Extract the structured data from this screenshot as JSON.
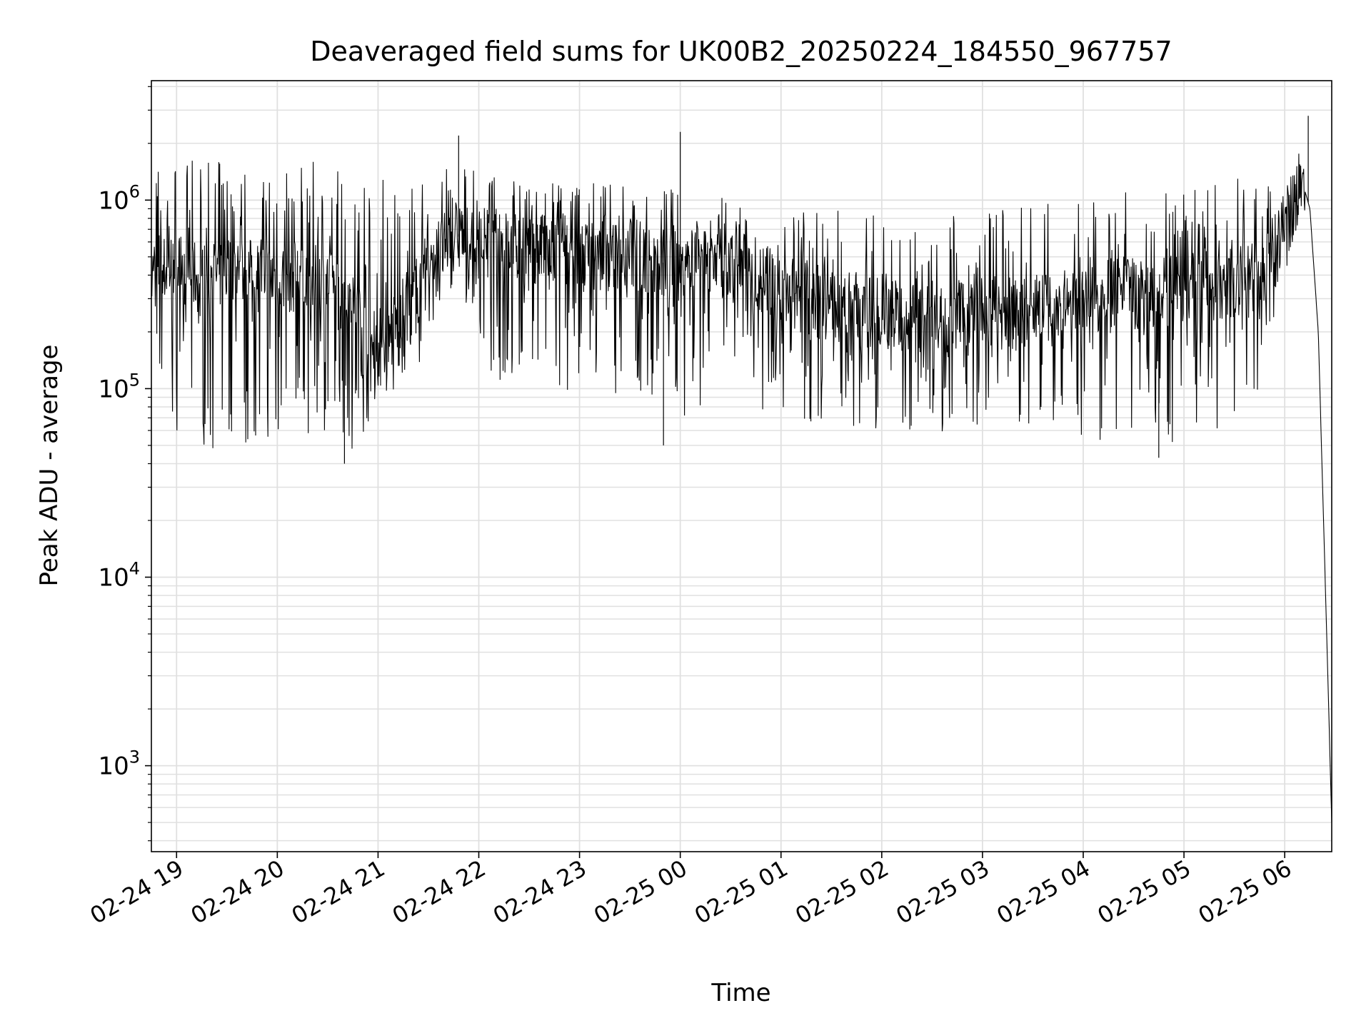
{
  "chart_data": {
    "type": "line",
    "title": "Deaveraged field sums for UK00B2_20250224_184550_967757",
    "xlabel": "Time",
    "ylabel": "Peak ADU - average",
    "y_scale": "log",
    "ylim": [
      350,
      4300000
    ],
    "xlim": [
      "2025-02-24 18:45",
      "2025-02-25 06:28"
    ],
    "grid": true,
    "grid_minor": true,
    "line_color": "#000000",
    "grid_color": "#e0e0e0",
    "x_ticks": [
      {
        "value": "2025-02-24 19:00",
        "label": "02-24 19"
      },
      {
        "value": "2025-02-24 20:00",
        "label": "02-24 20"
      },
      {
        "value": "2025-02-24 21:00",
        "label": "02-24 21"
      },
      {
        "value": "2025-02-24 22:00",
        "label": "02-24 22"
      },
      {
        "value": "2025-02-24 23:00",
        "label": "02-24 23"
      },
      {
        "value": "2025-02-25 00:00",
        "label": "02-25 00"
      },
      {
        "value": "2025-02-25 01:00",
        "label": "02-25 01"
      },
      {
        "value": "2025-02-25 02:00",
        "label": "02-25 02"
      },
      {
        "value": "2025-02-25 03:00",
        "label": "02-25 03"
      },
      {
        "value": "2025-02-25 04:00",
        "label": "02-25 04"
      },
      {
        "value": "2025-02-25 05:00",
        "label": "02-25 05"
      },
      {
        "value": "2025-02-25 06:00",
        "label": "02-25 06"
      }
    ],
    "y_ticks": [
      {
        "value": 1000,
        "label_base": "10",
        "label_exp": "3"
      },
      {
        "value": 10000,
        "label_base": "10",
        "label_exp": "4"
      },
      {
        "value": 100000,
        "label_base": "10",
        "label_exp": "5"
      },
      {
        "value": 1000000,
        "label_base": "10",
        "label_exp": "6"
      }
    ],
    "series": [
      {
        "x": [
          "2025-02-24 18:45",
          "2025-02-24 19:00",
          "2025-02-24 19:15",
          "2025-02-24 19:30",
          "2025-02-24 19:45",
          "2025-02-24 20:00",
          "2025-02-24 20:15",
          "2025-02-24 20:30",
          "2025-02-24 20:45",
          "2025-02-24 21:00",
          "2025-02-24 21:15",
          "2025-02-24 21:30",
          "2025-02-24 21:45",
          "2025-02-24 22:00",
          "2025-02-24 22:15",
          "2025-02-24 22:30",
          "2025-02-24 22:45",
          "2025-02-24 23:00",
          "2025-02-24 23:15",
          "2025-02-24 23:30",
          "2025-02-24 23:45",
          "2025-02-25 00:00",
          "2025-02-25 00:15",
          "2025-02-25 00:30",
          "2025-02-25 00:45",
          "2025-02-25 01:00",
          "2025-02-25 01:15",
          "2025-02-25 01:30",
          "2025-02-25 01:45",
          "2025-02-25 02:00",
          "2025-02-25 02:15",
          "2025-02-25 02:30",
          "2025-02-25 02:45",
          "2025-02-25 03:00",
          "2025-02-25 03:15",
          "2025-02-25 03:30",
          "2025-02-25 03:45",
          "2025-02-25 04:00",
          "2025-02-25 04:15",
          "2025-02-25 04:30",
          "2025-02-25 04:45",
          "2025-02-25 05:00",
          "2025-02-25 05:15",
          "2025-02-25 05:30",
          "2025-02-25 05:45",
          "2025-02-25 06:00",
          "2025-02-25 06:10",
          "2025-02-25 06:15",
          "2025-02-25 06:20",
          "2025-02-25 06:25",
          "2025-02-25 06:28"
        ],
        "median": [
          400000,
          450000,
          380000,
          420000,
          400000,
          380000,
          400000,
          350000,
          300000,
          150000,
          250000,
          420000,
          650000,
          600000,
          580000,
          550000,
          530000,
          520000,
          500000,
          520000,
          450000,
          500000,
          520000,
          420000,
          380000,
          350000,
          300000,
          280000,
          260000,
          250000,
          240000,
          230000,
          230000,
          240000,
          250000,
          260000,
          280000,
          300000,
          320000,
          320000,
          330000,
          340000,
          350000,
          360000,
          380000,
          700000,
          1300000,
          900000,
          200000,
          5000,
          500
        ],
        "low": [
          100000,
          60000,
          50000,
          45000,
          50000,
          55000,
          55000,
          50000,
          45000,
          80000,
          100000,
          120000,
          350000,
          150000,
          100000,
          100000,
          90000,
          95000,
          90000,
          90000,
          80000,
          70000,
          80000,
          75000,
          70000,
          70000,
          65000,
          65000,
          60000,
          60000,
          55000,
          58000,
          60000,
          60000,
          60000,
          60000,
          55000,
          55000,
          50000,
          50000,
          52000,
          50000,
          55000,
          58000,
          90000,
          400000,
          900000,
          700000,
          200000,
          5000,
          500
        ],
        "high": [
          1600000,
          1600000,
          1650000,
          1600000,
          1650000,
          1600000,
          1600000,
          1600000,
          1650000,
          1400000,
          1400000,
          1200000,
          1600000,
          1400000,
          1300000,
          1300000,
          1300000,
          1250000,
          1300000,
          1300000,
          1200000,
          1150000,
          1100000,
          1000000,
          950000,
          900000,
          900000,
          900000,
          850000,
          850000,
          820000,
          820000,
          850000,
          850000,
          900000,
          950000,
          1000000,
          1050000,
          1100000,
          1100000,
          1100000,
          1150000,
          1200000,
          1300000,
          1300000,
          1200000,
          1900000,
          1200000,
          200000,
          5000,
          500
        ],
        "spikes": [
          {
            "x": "2025-02-24 21:48",
            "y": 2200000
          },
          {
            "x": "2025-02-25 00:00",
            "y": 2300000
          },
          {
            "x": "2025-02-25 06:14",
            "y": 2800000
          },
          {
            "x": "2025-02-24 20:40",
            "y": 40000
          },
          {
            "x": "2025-02-24 23:50",
            "y": 50000
          },
          {
            "x": "2025-02-25 04:45",
            "y": 43000
          }
        ]
      }
    ]
  }
}
